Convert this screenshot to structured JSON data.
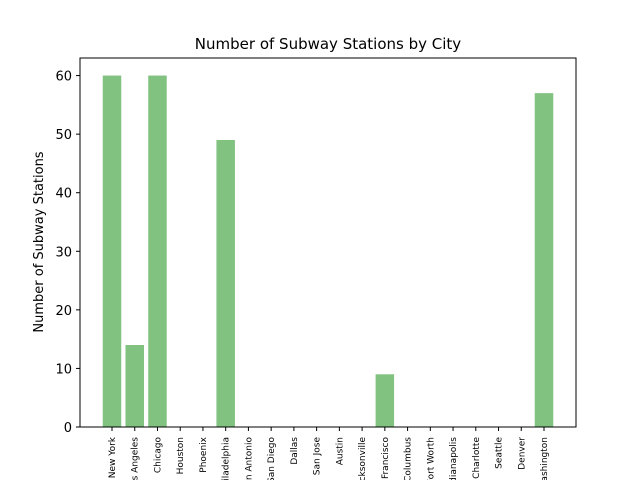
{
  "chart_data": {
    "type": "bar",
    "title": "Number of Subway Stations by City",
    "xlabel": "",
    "ylabel": "Number of Subway Stations",
    "categories": [
      "New York",
      "Los Angeles",
      "Chicago",
      "Houston",
      "Phoenix",
      "Philadelphia",
      "San Antonio",
      "San Diego",
      "Dallas",
      "San Jose",
      "Austin",
      "Jacksonville",
      "San Francisco",
      "Columbus",
      "Fort Worth",
      "Indianapolis",
      "Charlotte",
      "Seattle",
      "Denver",
      "Washington"
    ],
    "values": [
      60,
      14,
      60,
      0,
      0,
      49,
      0,
      0,
      0,
      0,
      0,
      0,
      9,
      0,
      0,
      0,
      0,
      0,
      0,
      57
    ],
    "ylim": [
      0,
      63
    ],
    "yticks": [
      0,
      10,
      20,
      30,
      40,
      50,
      60
    ],
    "bar_color": "#81c281",
    "grid": false,
    "legend": "none"
  }
}
